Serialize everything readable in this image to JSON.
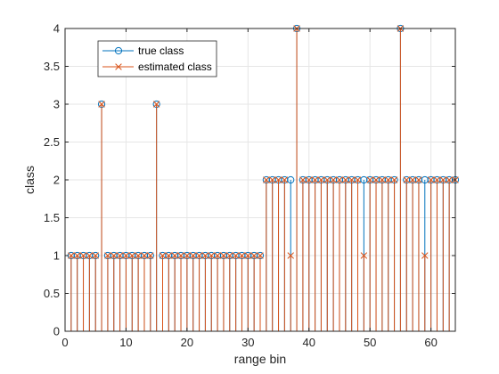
{
  "chart_data": {
    "type": "stem",
    "xlabel": "range bin",
    "ylabel": "class",
    "xlim": [
      0,
      64
    ],
    "ylim": [
      0,
      4
    ],
    "xticks": [
      0,
      10,
      20,
      30,
      40,
      50,
      60
    ],
    "yticks": [
      0,
      0.5,
      1,
      1.5,
      2,
      2.5,
      3,
      3.5,
      4
    ],
    "xtick_labels": [
      "0",
      "10",
      "20",
      "30",
      "40",
      "50",
      "60"
    ],
    "ytick_labels": [
      "0",
      "0.5",
      "1",
      "1.5",
      "2",
      "2.5",
      "3",
      "3.5",
      "4"
    ],
    "grid": true,
    "legend_position": "top-left",
    "x": [
      1,
      2,
      3,
      4,
      5,
      6,
      7,
      8,
      9,
      10,
      11,
      12,
      13,
      14,
      15,
      16,
      17,
      18,
      19,
      20,
      21,
      22,
      23,
      24,
      25,
      26,
      27,
      28,
      29,
      30,
      31,
      32,
      33,
      34,
      35,
      36,
      37,
      38,
      39,
      40,
      41,
      42,
      43,
      44,
      45,
      46,
      47,
      48,
      49,
      50,
      51,
      52,
      53,
      54,
      55,
      56,
      57,
      58,
      59,
      60,
      61,
      62,
      63,
      64
    ],
    "series": [
      {
        "name": "true class",
        "marker": "circle",
        "color": "#0072BD",
        "values": [
          1,
          1,
          1,
          1,
          1,
          3,
          1,
          1,
          1,
          1,
          1,
          1,
          1,
          1,
          3,
          1,
          1,
          1,
          1,
          1,
          1,
          1,
          1,
          1,
          1,
          1,
          1,
          1,
          1,
          1,
          1,
          1,
          2,
          2,
          2,
          2,
          2,
          4,
          2,
          2,
          2,
          2,
          2,
          2,
          2,
          2,
          2,
          2,
          2,
          2,
          2,
          2,
          2,
          2,
          4,
          2,
          2,
          2,
          2,
          2,
          2,
          2,
          2,
          2
        ]
      },
      {
        "name": "estimated class",
        "marker": "x",
        "color": "#D95319",
        "values": [
          1,
          1,
          1,
          1,
          1,
          3,
          1,
          1,
          1,
          1,
          1,
          1,
          1,
          1,
          3,
          1,
          1,
          1,
          1,
          1,
          1,
          1,
          1,
          1,
          1,
          1,
          1,
          1,
          1,
          1,
          1,
          1,
          2,
          2,
          2,
          2,
          1,
          4,
          2,
          2,
          2,
          2,
          2,
          2,
          2,
          2,
          2,
          2,
          1,
          2,
          2,
          2,
          2,
          2,
          4,
          2,
          2,
          2,
          1,
          2,
          2,
          2,
          2,
          2
        ]
      }
    ]
  }
}
